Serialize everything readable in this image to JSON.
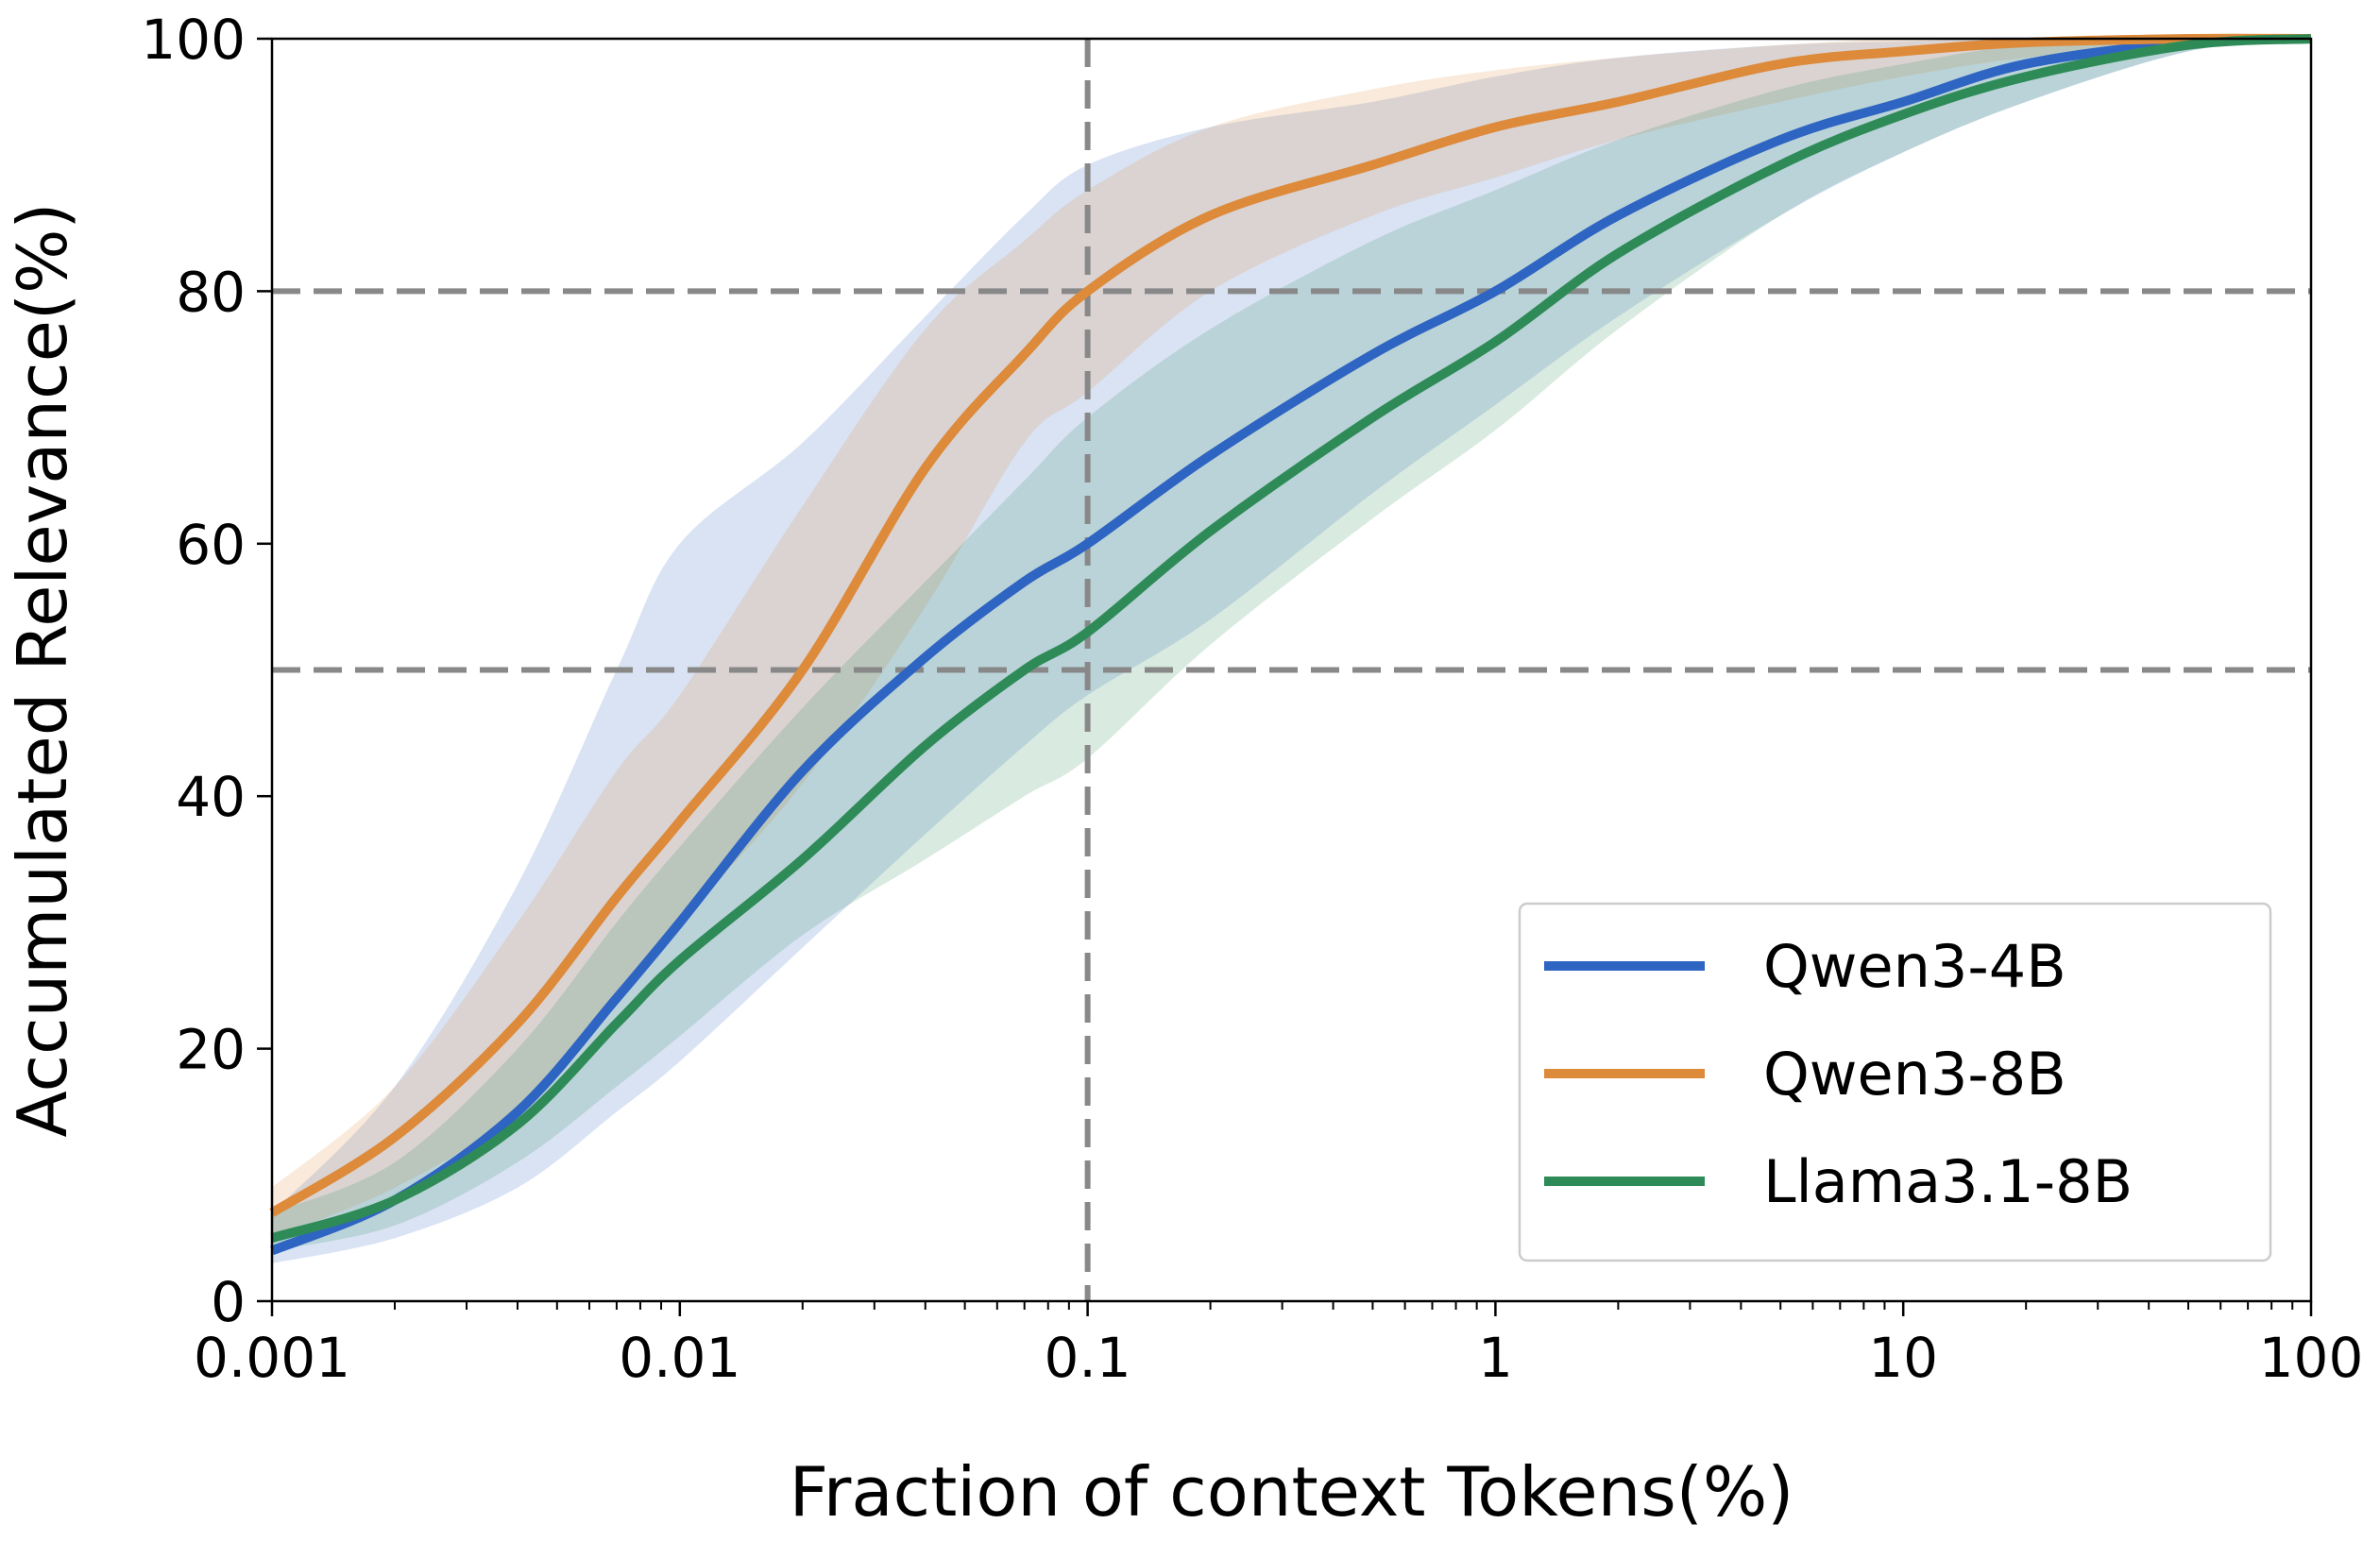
{
  "chart_data": {
    "type": "line",
    "xlabel": "Fraction of context Tokens(%)",
    "ylabel": "Accumulated Relevance(%)",
    "x_scale": "log",
    "xlim": [
      0.001,
      100
    ],
    "ylim": [
      0,
      100
    ],
    "x_ticks": [
      0.001,
      0.01,
      0.1,
      1,
      10,
      100
    ],
    "x_tick_labels": [
      "0.001",
      "0.01",
      "0.1",
      "1",
      "10",
      "100"
    ],
    "y_ticks": [
      0,
      20,
      40,
      60,
      80,
      100
    ],
    "y_tick_labels": [
      "0",
      "20",
      "40",
      "60",
      "80",
      "100"
    ],
    "grid": false,
    "legend_position": "bottom-right",
    "reference_lines": {
      "horizontal": [
        80,
        50
      ],
      "vertical": [
        0.1
      ],
      "color": "#888888",
      "style": "dashed"
    },
    "series": [
      {
        "name": "Qwen3-4B",
        "color": "#2e64c2",
        "x": [
          0.001,
          0.002,
          0.004,
          0.007,
          0.01,
          0.02,
          0.04,
          0.07,
          0.1,
          0.2,
          0.5,
          1,
          2,
          5,
          10,
          20,
          50,
          100
        ],
        "values": [
          4,
          8,
          15,
          24,
          30,
          42,
          51,
          57,
          60,
          67,
          75,
          80,
          86,
          92,
          95,
          98,
          99.7,
          100
        ],
        "lower": [
          3,
          5,
          9,
          15,
          19,
          28,
          37,
          44,
          48,
          54,
          64,
          71,
          78,
          86,
          91,
          95,
          99,
          100
        ],
        "upper": [
          7,
          17,
          33,
          50,
          60,
          68,
          78,
          86,
          90,
          93,
          95,
          97,
          98.5,
          99.5,
          99.8,
          100,
          100,
          100
        ]
      },
      {
        "name": "Qwen3-8B",
        "color": "#dd8a3a",
        "x": [
          0.001,
          0.002,
          0.004,
          0.007,
          0.01,
          0.02,
          0.04,
          0.07,
          0.1,
          0.2,
          0.5,
          1,
          2,
          5,
          10,
          20,
          50,
          100
        ],
        "values": [
          7,
          13,
          22,
          32,
          38,
          50,
          66,
          75,
          80,
          86,
          90,
          93,
          95,
          98,
          99,
          99.7,
          100,
          100
        ],
        "lower": [
          5,
          9,
          15,
          24,
          30,
          41,
          55,
          68,
          72,
          80,
          86,
          89,
          92,
          95,
          97,
          98.5,
          99.5,
          100
        ],
        "upper": [
          9,
          17,
          30,
          42,
          48,
          63,
          77,
          84,
          88,
          93,
          96,
          97.5,
          98.5,
          99.5,
          100,
          100,
          100,
          100
        ]
      },
      {
        "name": "Llama3.1-8B",
        "color": "#2e8b57",
        "x": [
          0.001,
          0.002,
          0.004,
          0.007,
          0.01,
          0.02,
          0.04,
          0.07,
          0.1,
          0.2,
          0.5,
          1,
          2,
          5,
          10,
          20,
          50,
          100
        ],
        "values": [
          5,
          8,
          14,
          22,
          27,
          35,
          44,
          50,
          53,
          61,
          70,
          76,
          83,
          90,
          94,
          97,
          99.5,
          100
        ],
        "lower": [
          4,
          6,
          11,
          17,
          21,
          29,
          35,
          40,
          43,
          52,
          62,
          69,
          77,
          86,
          91,
          95,
          99,
          100
        ],
        "upper": [
          7,
          11,
          20,
          30,
          36,
          47,
          57,
          65,
          70,
          77,
          84,
          88,
          92,
          96,
          98,
          99.5,
          100,
          100
        ]
      }
    ]
  }
}
